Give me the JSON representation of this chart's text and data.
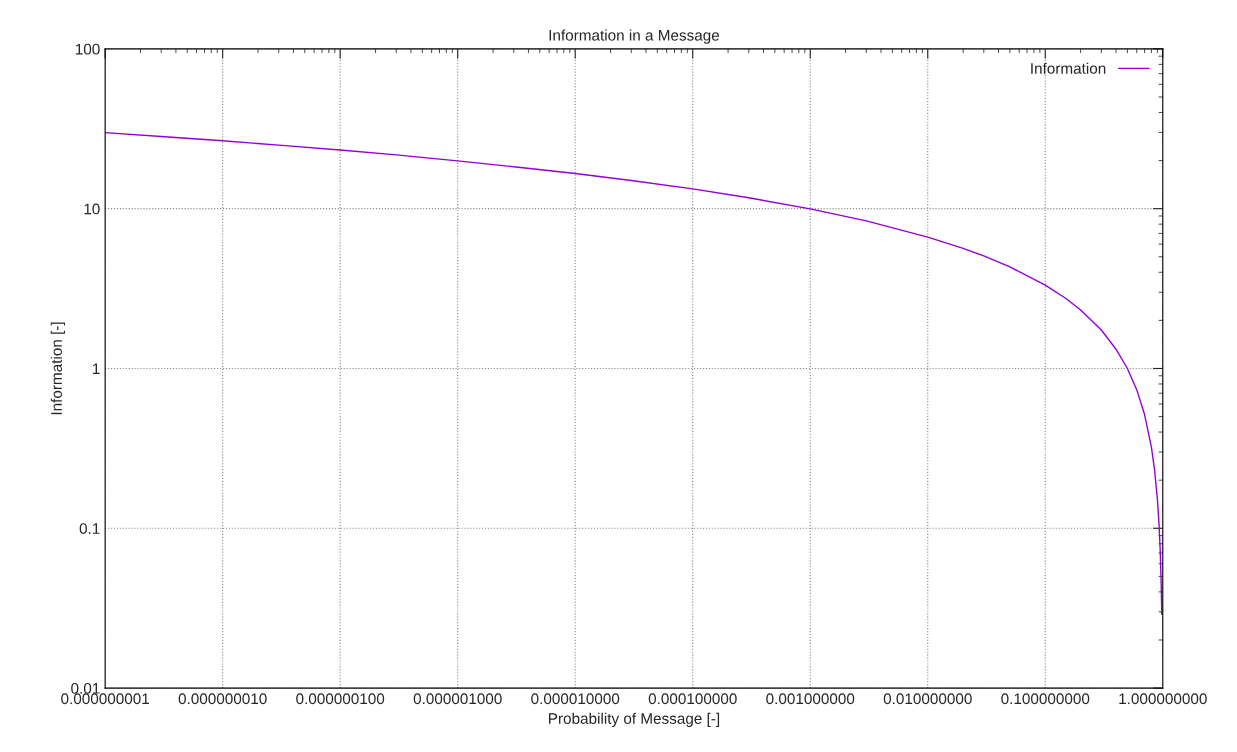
{
  "chart_data": {
    "type": "line",
    "title": "Information in a Message",
    "xlabel": "Probability of Message [-]",
    "ylabel": "Information [-]",
    "x": [
      1e-09,
      3e-09,
      1e-08,
      3e-08,
      1e-07,
      3e-07,
      1e-06,
      3e-06,
      1e-05,
      3e-05,
      0.0001,
      0.0003,
      0.001,
      0.003,
      0.01,
      0.02,
      0.03,
      0.05,
      0.1,
      0.15,
      0.2,
      0.3,
      0.4,
      0.5,
      0.6,
      0.7,
      0.8,
      0.85,
      0.9,
      0.93,
      0.95,
      0.97,
      0.98
    ],
    "series": [
      {
        "name": "Information",
        "color": "#9400d3",
        "values": [
          29.9,
          28.3,
          26.6,
          25.0,
          23.3,
          21.7,
          19.9,
          18.3,
          16.6,
          15.0,
          13.3,
          11.7,
          9.97,
          8.38,
          6.64,
          5.64,
          5.06,
          4.32,
          3.32,
          2.74,
          2.32,
          1.74,
          1.32,
          1.0,
          0.737,
          0.515,
          0.322,
          0.234,
          0.152,
          0.105,
          0.074,
          0.044,
          0.029
        ]
      }
    ],
    "log": "xy",
    "xlim": [
      1e-09,
      1
    ],
    "ylim": [
      0.01,
      100
    ],
    "xticks": [
      {
        "value": 1e-09,
        "label": "0.000000001"
      },
      {
        "value": 1e-08,
        "label": "0.000000010"
      },
      {
        "value": 1e-07,
        "label": "0.000000100"
      },
      {
        "value": 1e-06,
        "label": "0.000001000"
      },
      {
        "value": 1e-05,
        "label": "0.000010000"
      },
      {
        "value": 0.0001,
        "label": "0.000100000"
      },
      {
        "value": 0.001,
        "label": "0.001000000"
      },
      {
        "value": 0.01,
        "label": "0.010000000"
      },
      {
        "value": 0.1,
        "label": "0.100000000"
      },
      {
        "value": 1,
        "label": "1.000000000"
      }
    ],
    "yticks": [
      0.01,
      0.1,
      1,
      10,
      100
    ],
    "grid": true,
    "legend": "top right",
    "line_style": "solid",
    "marker": "none"
  }
}
